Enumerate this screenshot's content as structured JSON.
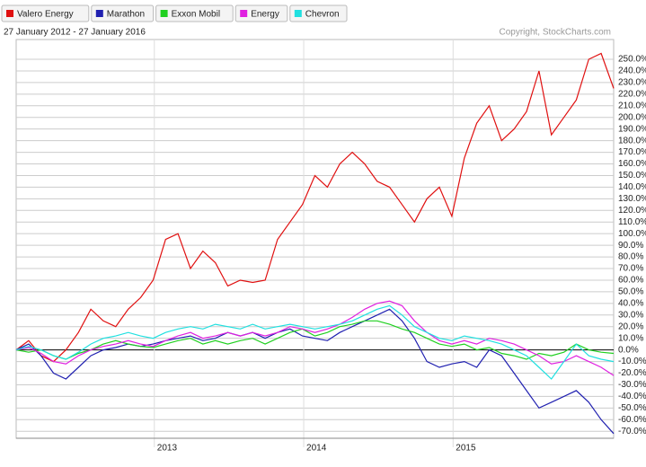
{
  "chart_data": {
    "type": "line",
    "subtitle": "27 January 2012 - 27 January 2016",
    "copyright": "Copyright, StockCharts.com",
    "x": [
      0,
      1,
      2,
      3,
      4,
      5,
      6,
      7,
      8,
      9,
      10,
      11,
      12,
      13,
      14,
      15,
      16,
      17,
      18,
      19,
      20,
      21,
      22,
      23,
      24,
      25,
      26,
      27,
      28,
      29,
      30,
      31,
      32,
      33,
      34,
      35,
      36,
      37,
      38,
      39,
      40,
      41,
      42,
      43,
      44,
      45,
      46,
      47,
      48
    ],
    "xlim": [
      0,
      48
    ],
    "xticks": [
      {
        "value": 11.1,
        "label": "2013"
      },
      {
        "value": 23.1,
        "label": "2014"
      },
      {
        "value": 35.1,
        "label": "2015"
      }
    ],
    "ylim": [
      -76,
      267
    ],
    "yticks": [
      {
        "value": 250,
        "label": "250.0%"
      },
      {
        "value": 240,
        "label": "240.0%"
      },
      {
        "value": 230,
        "label": "230.0%"
      },
      {
        "value": 220,
        "label": "220.0%"
      },
      {
        "value": 210,
        "label": "210.0%"
      },
      {
        "value": 200,
        "label": "200.0%"
      },
      {
        "value": 190,
        "label": "190.0%"
      },
      {
        "value": 180,
        "label": "180.0%"
      },
      {
        "value": 170,
        "label": "170.0%"
      },
      {
        "value": 160,
        "label": "160.0%"
      },
      {
        "value": 150,
        "label": "150.0%"
      },
      {
        "value": 140,
        "label": "140.0%"
      },
      {
        "value": 130,
        "label": "130.0%"
      },
      {
        "value": 120,
        "label": "120.0%"
      },
      {
        "value": 110,
        "label": "110.0%"
      },
      {
        "value": 100,
        "label": "100.0%"
      },
      {
        "value": 90,
        "label": "90.0%"
      },
      {
        "value": 80,
        "label": "80.0%"
      },
      {
        "value": 70,
        "label": "70.0%"
      },
      {
        "value": 60,
        "label": "60.0%"
      },
      {
        "value": 50,
        "label": "50.0%"
      },
      {
        "value": 40,
        "label": "40.0%"
      },
      {
        "value": 30,
        "label": "30.0%"
      },
      {
        "value": 20,
        "label": "20.0%"
      },
      {
        "value": 10,
        "label": "10.0%"
      },
      {
        "value": 0,
        "label": "0.0%"
      },
      {
        "value": -10,
        "label": "-10.0%"
      },
      {
        "value": -20,
        "label": "-20.0%"
      },
      {
        "value": -30,
        "label": "-30.0%"
      },
      {
        "value": -40,
        "label": "-40.0%"
      },
      {
        "value": -50,
        "label": "-50.0%"
      },
      {
        "value": -60,
        "label": "-60.0%"
      },
      {
        "value": -70,
        "label": "-70.0%"
      }
    ],
    "grid": true,
    "series": [
      {
        "name": "Valero Energy",
        "color": "#e01010",
        "values": [
          0,
          8,
          -5,
          -10,
          0,
          15,
          35,
          25,
          20,
          35,
          45,
          60,
          95,
          100,
          70,
          85,
          75,
          55,
          60,
          58,
          60,
          95,
          110,
          125,
          150,
          140,
          160,
          170,
          160,
          145,
          140,
          125,
          110,
          130,
          140,
          115,
          165,
          195,
          210,
          180,
          190,
          205,
          240,
          185,
          200,
          215,
          250,
          255,
          225
        ]
      },
      {
        "name": "Marathon",
        "color": "#2020b0",
        "values": [
          0,
          5,
          -5,
          -20,
          -25,
          -15,
          -5,
          0,
          2,
          5,
          3,
          5,
          8,
          10,
          12,
          8,
          10,
          15,
          12,
          15,
          10,
          15,
          18,
          12,
          10,
          8,
          15,
          20,
          25,
          30,
          35,
          25,
          10,
          -10,
          -15,
          -12,
          -10,
          -15,
          0,
          -5,
          -20,
          -35,
          -50,
          -45,
          -40,
          -35,
          -45,
          -60,
          -72
        ]
      },
      {
        "name": "Exxon Mobil",
        "color": "#20d020",
        "values": [
          0,
          -2,
          0,
          -5,
          -8,
          -3,
          0,
          5,
          8,
          5,
          3,
          2,
          5,
          8,
          10,
          5,
          8,
          5,
          8,
          10,
          5,
          10,
          15,
          18,
          12,
          15,
          20,
          22,
          25,
          25,
          22,
          18,
          15,
          10,
          5,
          3,
          5,
          0,
          2,
          -3,
          -5,
          -8,
          -3,
          -5,
          -2,
          5,
          0,
          -2,
          -3
        ]
      },
      {
        "name": "Energy",
        "color": "#e020e0",
        "values": [
          0,
          2,
          -3,
          -10,
          -12,
          -5,
          0,
          3,
          5,
          8,
          5,
          3,
          8,
          12,
          15,
          10,
          12,
          15,
          12,
          15,
          12,
          15,
          20,
          18,
          15,
          18,
          22,
          28,
          35,
          40,
          42,
          38,
          25,
          15,
          8,
          5,
          8,
          5,
          10,
          8,
          5,
          0,
          -5,
          -12,
          -10,
          -5,
          -10,
          -15,
          -22
        ]
      },
      {
        "name": "Chevron",
        "color": "#20e0e0",
        "values": [
          0,
          3,
          0,
          -5,
          -8,
          -2,
          5,
          10,
          12,
          15,
          12,
          10,
          15,
          18,
          20,
          18,
          22,
          20,
          18,
          22,
          18,
          20,
          22,
          20,
          18,
          20,
          22,
          25,
          30,
          35,
          38,
          30,
          20,
          15,
          10,
          8,
          12,
          10,
          8,
          5,
          0,
          -5,
          -15,
          -25,
          -10,
          5,
          -5,
          -8,
          -10
        ]
      }
    ]
  }
}
